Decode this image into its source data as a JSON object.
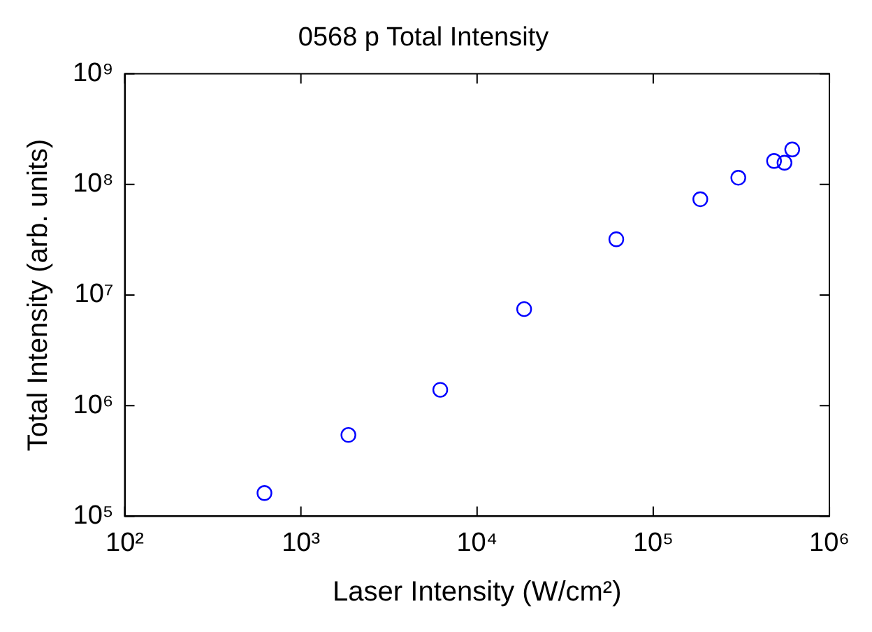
{
  "chart_data": {
    "type": "scatter",
    "title": "0568 p Total Intensity",
    "xlabel": "Laser Intensity (W/cm²)",
    "ylabel": "Total Intensity (arb. units)",
    "x": [
      621,
      1860,
      6180,
      18500,
      61700,
      185000,
      304000,
      485000,
      556000,
      615000
    ],
    "series": [
      {
        "color": "#0000ff",
        "values": [
          162000,
          543000,
          1390000,
          7460000,
          31900000,
          73500000,
          115000000,
          163000000,
          157000000,
          207000000
        ]
      }
    ],
    "log": "xy",
    "xlim": [
      100,
      1000000
    ],
    "ylim": [
      100000,
      1000000000
    ],
    "xticks": [
      {
        "value": 100,
        "label": "10²"
      },
      {
        "value": 1000,
        "label": "10³"
      },
      {
        "value": 10000,
        "label": "10⁴"
      },
      {
        "value": 100000,
        "label": "10⁵"
      },
      {
        "value": 1000000,
        "label": "10⁶"
      }
    ],
    "yticks": [
      {
        "value": 100000,
        "label": "10⁵"
      },
      {
        "value": 1000000,
        "label": "10⁶"
      },
      {
        "value": 10000000,
        "label": "10⁷"
      },
      {
        "value": 100000000,
        "label": "10⁸"
      },
      {
        "value": 1000000000,
        "label": "10⁹"
      }
    ],
    "grid": false,
    "legend": false,
    "marker": "circle"
  }
}
